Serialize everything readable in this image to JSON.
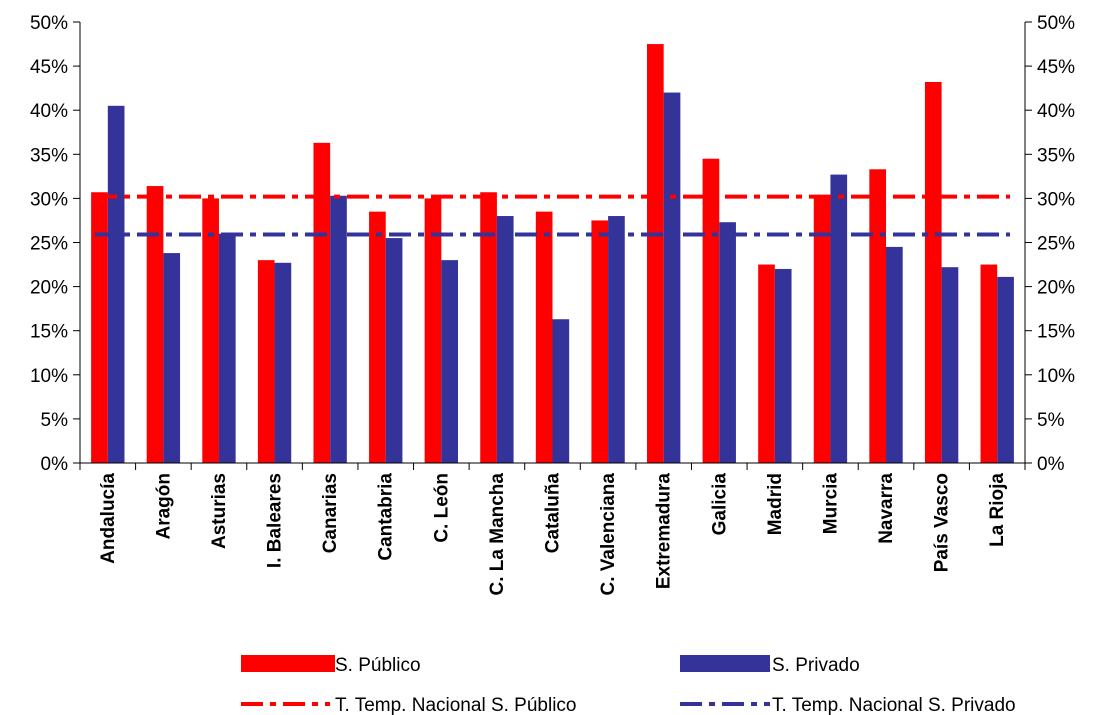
{
  "chart_data": {
    "type": "bar",
    "categories": [
      "Andalucía",
      "Aragón",
      "Asturias",
      "I. Baleares",
      "Canarias",
      "Cantabria",
      "C. León",
      "C. La Mancha",
      "Cataluña",
      "C. Valenciana",
      "Extremadura",
      "Galicia",
      "Madrid",
      "Murcia",
      "Navarra",
      "País Vasco",
      "La Rioja"
    ],
    "series": [
      {
        "name": "S. Público",
        "color": "#ff0000",
        "values": [
          30.7,
          31.4,
          30.0,
          23.0,
          36.3,
          28.5,
          30.0,
          30.7,
          28.5,
          27.5,
          47.5,
          34.5,
          22.5,
          30.3,
          33.3,
          43.2,
          22.5
        ]
      },
      {
        "name": "S. Privado",
        "color": "#333399",
        "values": [
          40.5,
          23.8,
          26.0,
          22.7,
          30.3,
          25.5,
          23.0,
          28.0,
          16.3,
          28.0,
          42.0,
          27.3,
          22.0,
          32.7,
          24.5,
          22.2,
          21.1
        ]
      }
    ],
    "reference_lines": [
      {
        "name": "T. Temp. Nacional S. Público",
        "value": 30.2,
        "color": "#ff0000"
      },
      {
        "name": "T. Temp. Nacional S. Privado",
        "value": 25.9,
        "color": "#333399"
      }
    ],
    "y_ticks": [
      "0%",
      "5%",
      "10%",
      "15%",
      "20%",
      "25%",
      "30%",
      "35%",
      "40%",
      "45%",
      "50%"
    ],
    "ylim": [
      0,
      50
    ],
    "y_tick_step": 5,
    "secondary_y_axis": true,
    "grid": false,
    "legend_position": "bottom"
  }
}
